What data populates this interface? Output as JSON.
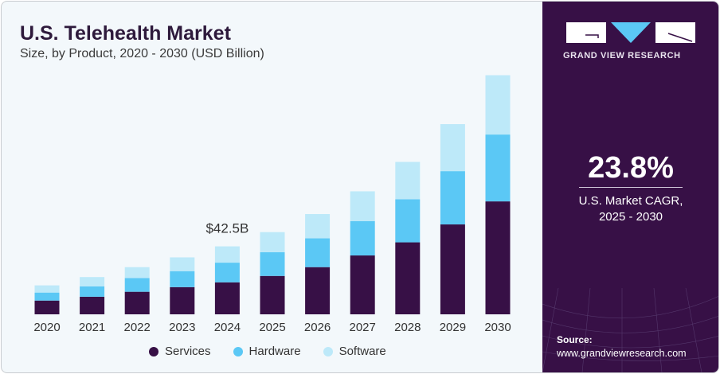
{
  "header": {
    "title": "U.S. Telehealth Market",
    "subtitle": "Size, by Product, 2020 - 2030 (USD Billion)"
  },
  "sidebar": {
    "brand": "GRAND VIEW RESEARCH",
    "cagr_value": "23.8%",
    "cagr_label_1": "U.S. Market CAGR,",
    "cagr_label_2": "2025 - 2030",
    "source_label": "Source:",
    "source_url": "www.grandviewresearch.com"
  },
  "colors": {
    "Services": "#371046",
    "Hardware": "#5bc8f5",
    "Software": "#bde9f9",
    "panel": "#371046",
    "background": "#f3f8fb"
  },
  "chart_data": {
    "type": "bar",
    "stacked": true,
    "title": "U.S. Telehealth Market",
    "subtitle": "Size, by Product, 2020 - 2030 (USD Billion)",
    "categories": [
      "2020",
      "2021",
      "2022",
      "2023",
      "2024",
      "2025",
      "2026",
      "2027",
      "2028",
      "2029",
      "2030"
    ],
    "series": [
      {
        "name": "Services",
        "values": [
          8.6,
          11.0,
          14.1,
          17.0,
          20.0,
          24.0,
          29.5,
          36.8,
          45.0,
          56.2,
          70.6
        ]
      },
      {
        "name": "Hardware",
        "values": [
          5.0,
          6.5,
          8.6,
          10.0,
          12.3,
          14.8,
          18.0,
          21.5,
          26.9,
          33.3,
          41.8
        ]
      },
      {
        "name": "Software",
        "values": [
          4.5,
          5.8,
          6.8,
          8.6,
          10.2,
          12.6,
          15.2,
          18.6,
          23.4,
          29.4,
          37.1
        ]
      }
    ],
    "annotations": [
      {
        "category": "2024",
        "text": "$42.5B"
      }
    ],
    "ylim": [
      0,
      150
    ],
    "grid": false,
    "y_axis_visible": false,
    "legend_position": "bottom"
  }
}
